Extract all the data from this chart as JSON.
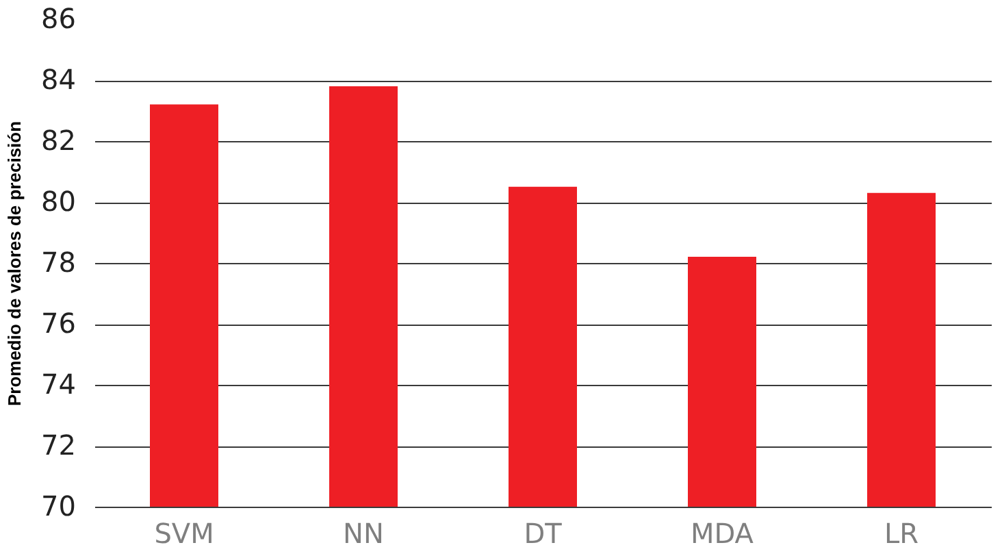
{
  "chart_data": {
    "type": "bar",
    "ylabel": "Promedio de valores de precisión",
    "categories": [
      "SVM",
      "NN",
      "DT",
      "MDA",
      "LR"
    ],
    "values": [
      83.2,
      83.8,
      80.5,
      78.2,
      80.3
    ],
    "color": "#ee1f25",
    "ylim": [
      70,
      86
    ],
    "yticks": [
      70,
      72,
      74,
      76,
      78,
      80,
      82,
      84,
      86
    ],
    "grid": "y"
  }
}
